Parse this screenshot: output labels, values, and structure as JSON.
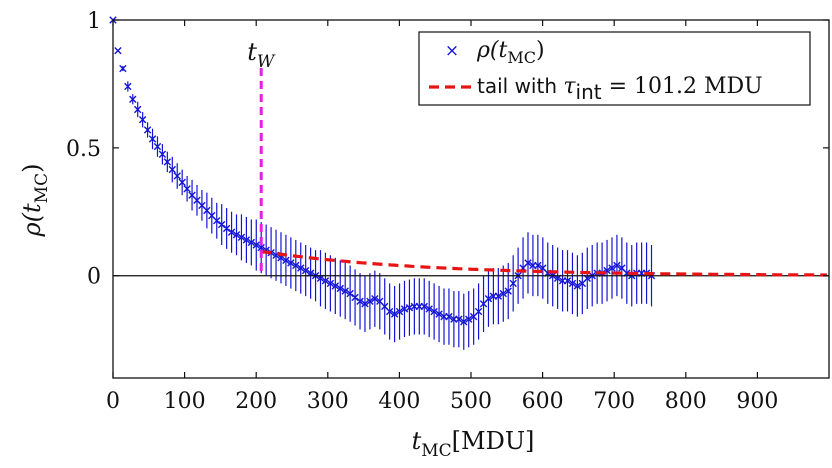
{
  "colors": {
    "series": "#1414d6",
    "tail": "#e81414",
    "marker_line": "#e61ee6",
    "axis": "#111111"
  },
  "chart_data": {
    "type": "scatter",
    "x_ticks": [
      "0",
      "100",
      "200",
      "300",
      "400",
      "500",
      "600",
      "700",
      "800",
      "900"
    ],
    "y_ticks": [
      "0",
      "0.5",
      "1"
    ],
    "xlim": [
      0,
      1000
    ],
    "ylim": [
      -0.4,
      1.0
    ],
    "xlabel": {
      "main": "t",
      "sub": "MC",
      "unit": "[MDU]"
    },
    "ylabel": {
      "main": "ρ(t",
      "sub": "MC",
      "close": ")"
    },
    "grid": false,
    "legend_position": "top-right",
    "legend": {
      "series_label": {
        "main": "ρ(t",
        "sub": "MC",
        "close": ")"
      },
      "tail_label": {
        "prefix": "tail with ",
        "tau": "τ",
        "tau_sub": "int",
        "value": " = 101.2 MDU"
      }
    },
    "annotation": {
      "text": "t",
      "sub": "W",
      "x": 207
    },
    "tail": {
      "name": "tail with τint = 101.2 MDU",
      "tau": 101.2,
      "x_start": 207,
      "x_end": 1000,
      "y_at_start": 0.095
    },
    "series": [
      {
        "name": "ρ(tMC)",
        "step": 6.9,
        "values": [
          1.0,
          0.88,
          0.81,
          0.74,
          0.69,
          0.65,
          0.61,
          0.57,
          0.535,
          0.505,
          0.475,
          0.445,
          0.415,
          0.39,
          0.365,
          0.34,
          0.315,
          0.295,
          0.275,
          0.255,
          0.235,
          0.215,
          0.2,
          0.185,
          0.17,
          0.16,
          0.15,
          0.14,
          0.13,
          0.12,
          0.11,
          0.1,
          0.09,
          0.08,
          0.07,
          0.06,
          0.05,
          0.04,
          0.03,
          0.02,
          0.01,
          0.0,
          -0.01,
          -0.02,
          -0.03,
          -0.04,
          -0.05,
          -0.06,
          -0.07,
          -0.085,
          -0.1,
          -0.11,
          -0.1,
          -0.09,
          -0.1,
          -0.12,
          -0.14,
          -0.15,
          -0.14,
          -0.13,
          -0.125,
          -0.12,
          -0.12,
          -0.12,
          -0.13,
          -0.14,
          -0.15,
          -0.16,
          -0.16,
          -0.17,
          -0.17,
          -0.18,
          -0.17,
          -0.16,
          -0.14,
          -0.11,
          -0.09,
          -0.08,
          -0.08,
          -0.07,
          -0.06,
          -0.03,
          0.0,
          0.03,
          0.05,
          0.04,
          0.04,
          0.03,
          0.01,
          0.0,
          -0.01,
          -0.02,
          -0.02,
          -0.03,
          -0.04,
          -0.03,
          -0.01,
          0.0,
          0.01,
          0.01,
          0.02,
          0.03,
          0.04,
          0.03,
          0.01,
          0.0,
          0.01,
          0.01,
          0.01,
          0.0
        ],
        "errors": [
          0.0,
          0.0,
          0.01,
          0.02,
          0.02,
          0.03,
          0.03,
          0.03,
          0.04,
          0.04,
          0.04,
          0.04,
          0.05,
          0.05,
          0.05,
          0.05,
          0.06,
          0.06,
          0.06,
          0.07,
          0.07,
          0.07,
          0.08,
          0.08,
          0.08,
          0.08,
          0.09,
          0.09,
          0.09,
          0.1,
          0.1,
          0.1,
          0.1,
          0.1,
          0.1,
          0.1,
          0.1,
          0.1,
          0.1,
          0.1,
          0.1,
          0.1,
          0.11,
          0.11,
          0.11,
          0.11,
          0.11,
          0.11,
          0.11,
          0.11,
          0.11,
          0.11,
          0.11,
          0.11,
          0.11,
          0.11,
          0.11,
          0.11,
          0.11,
          0.11,
          0.11,
          0.11,
          0.11,
          0.11,
          0.11,
          0.11,
          0.11,
          0.11,
          0.11,
          0.11,
          0.11,
          0.11,
          0.11,
          0.11,
          0.11,
          0.11,
          0.11,
          0.11,
          0.11,
          0.11,
          0.11,
          0.11,
          0.11,
          0.12,
          0.12,
          0.12,
          0.12,
          0.12,
          0.12,
          0.12,
          0.12,
          0.12,
          0.12,
          0.12,
          0.12,
          0.12,
          0.12,
          0.12,
          0.12,
          0.12,
          0.12,
          0.12,
          0.12,
          0.12,
          0.12,
          0.12,
          0.12,
          0.12,
          0.12,
          0.12
        ]
      }
    ]
  }
}
